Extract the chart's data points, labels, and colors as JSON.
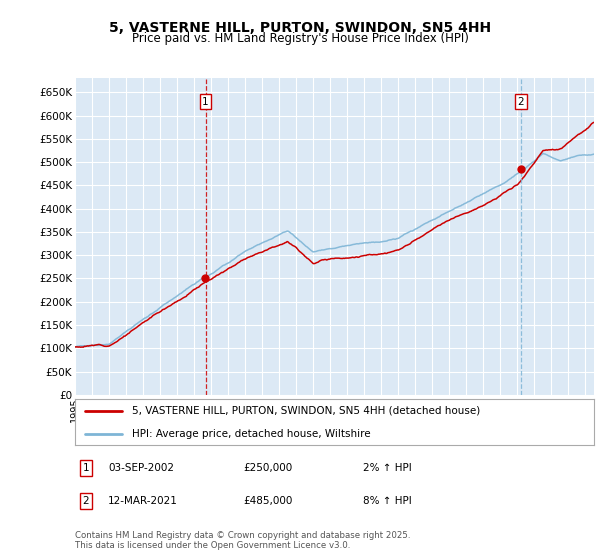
{
  "title": "5, VASTERNE HILL, PURTON, SWINDON, SN5 4HH",
  "subtitle": "Price paid vs. HM Land Registry's House Price Index (HPI)",
  "ylabel_ticks": [
    "£0",
    "£50K",
    "£100K",
    "£150K",
    "£200K",
    "£250K",
    "£300K",
    "£350K",
    "£400K",
    "£450K",
    "£500K",
    "£550K",
    "£600K",
    "£650K"
  ],
  "ylim": [
    0,
    680000
  ],
  "ytick_vals": [
    0,
    50000,
    100000,
    150000,
    200000,
    250000,
    300000,
    350000,
    400000,
    450000,
    500000,
    550000,
    600000,
    650000
  ],
  "hpi_color": "#7eb5d6",
  "price_color": "#cc0000",
  "sale1_vline_color": "#cc0000",
  "sale1_vline_style": "--",
  "sale2_vline_color": "#7eb5d6",
  "sale2_vline_style": "--",
  "plot_bg_color": "#dce9f5",
  "grid_color": "#ffffff",
  "sale1_x": 2002.67,
  "sale1_price": 250000,
  "sale2_x": 2021.2,
  "sale2_price": 485000,
  "legend_line1": "5, VASTERNE HILL, PURTON, SWINDON, SN5 4HH (detached house)",
  "legend_line2": "HPI: Average price, detached house, Wiltshire",
  "footnote": "Contains HM Land Registry data © Crown copyright and database right 2025.\nThis data is licensed under the Open Government Licence v3.0.",
  "xmin": 1995,
  "xmax": 2025.5,
  "table_row1": [
    "1",
    "03-SEP-2002",
    "£250,000",
    "2% ↑ HPI"
  ],
  "table_row2": [
    "2",
    "12-MAR-2021",
    "£485,000",
    "8% ↑ HPI"
  ]
}
